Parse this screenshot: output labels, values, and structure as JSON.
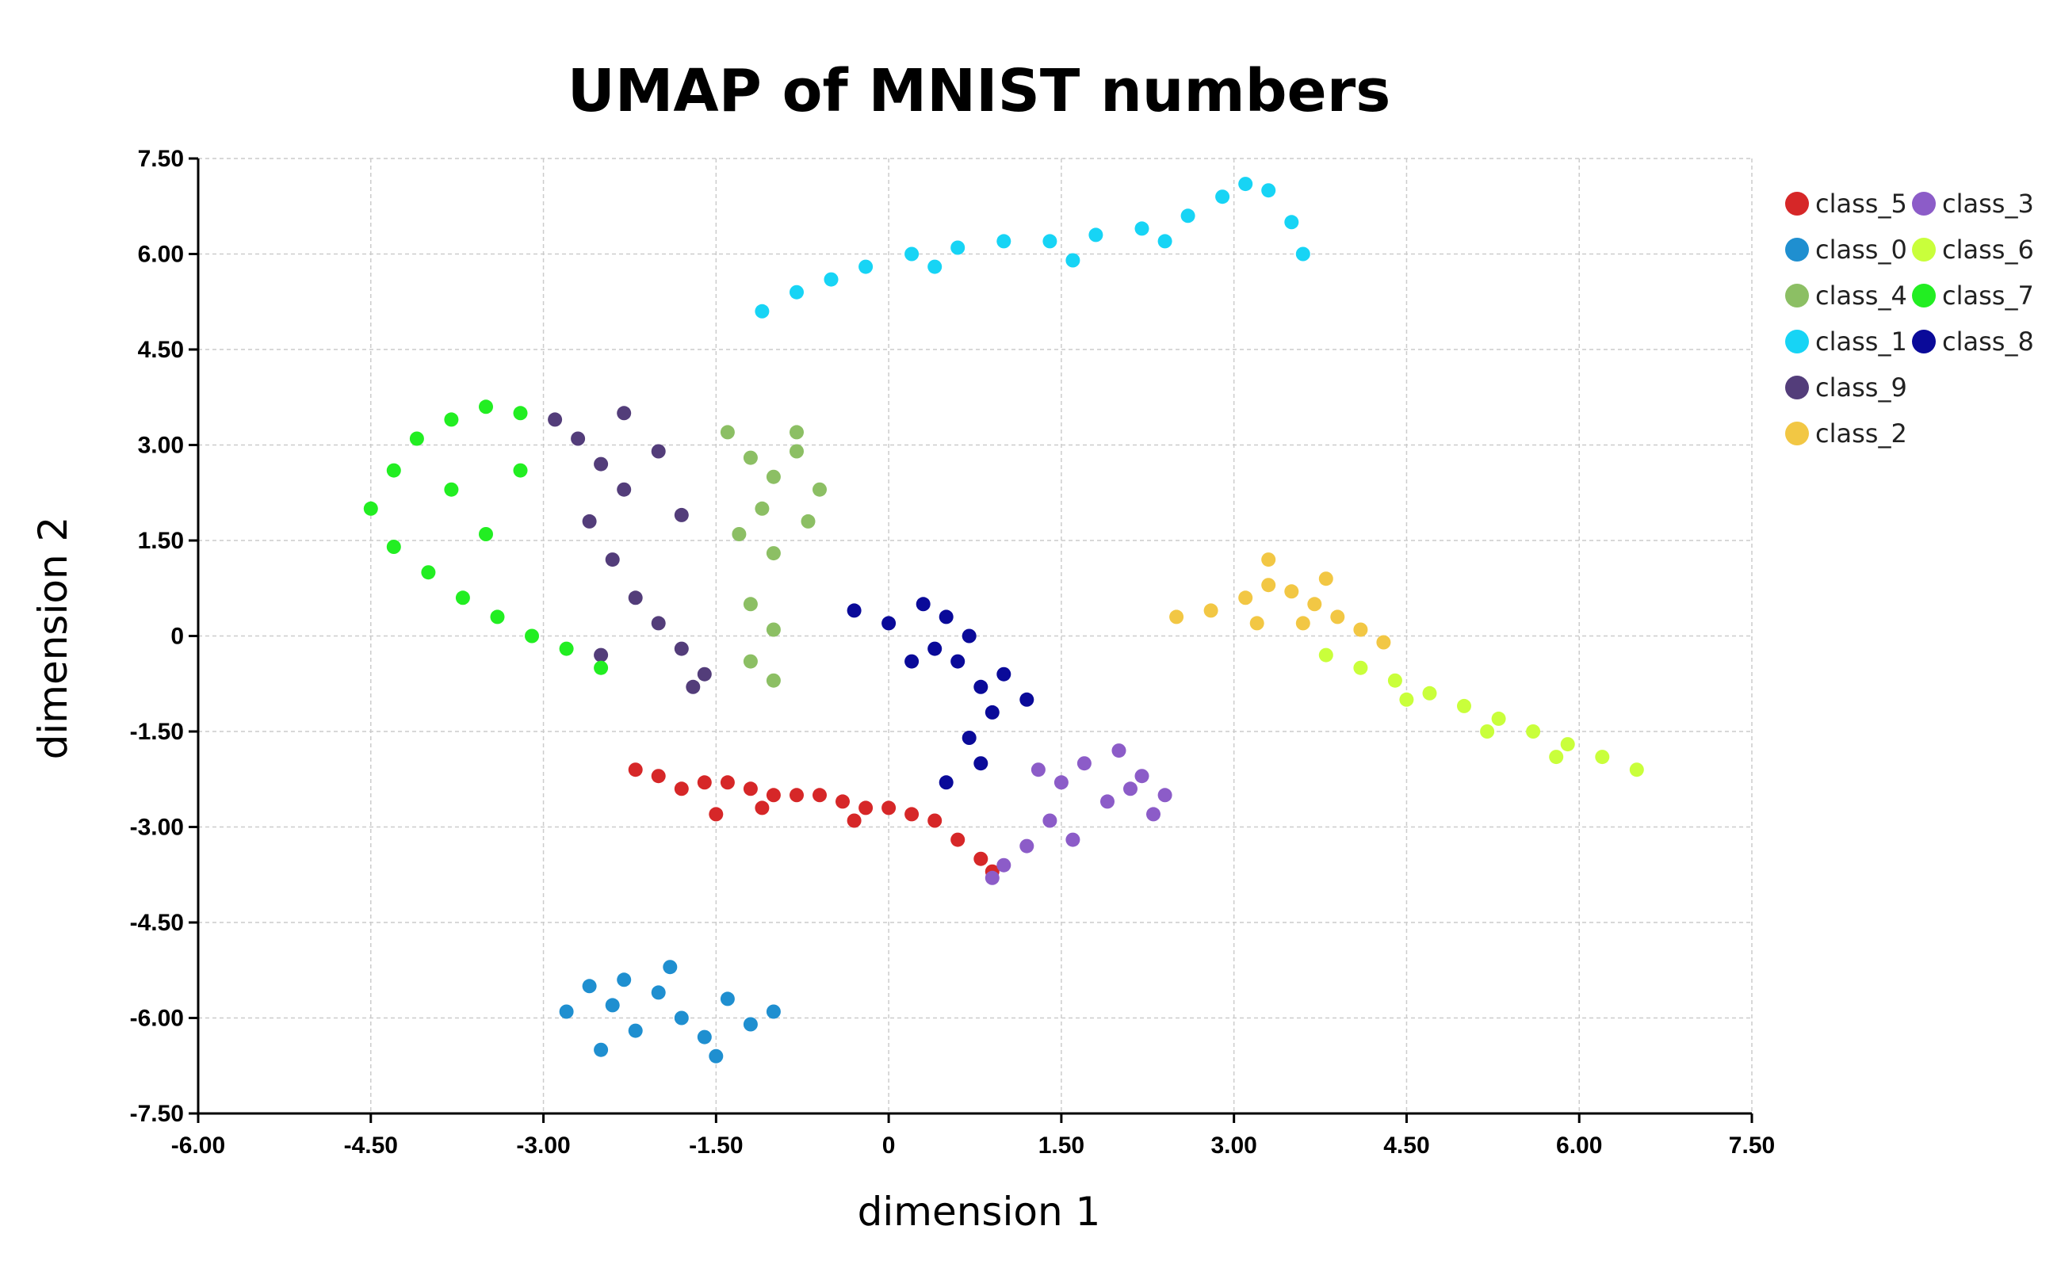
{
  "chart_data": {
    "type": "scatter",
    "title": "UMAP of MNIST numbers",
    "xlabel": "dimension 1",
    "ylabel": "dimension 2",
    "xlim": [
      -6.0,
      7.5
    ],
    "ylim": [
      -7.5,
      7.5
    ],
    "x_ticks": [
      "-6.00",
      "-4.50",
      "-3.00",
      "-1.50",
      "0",
      "1.50",
      "3.00",
      "4.50",
      "6.00",
      "7.50"
    ],
    "y_ticks": [
      "7.50",
      "6.00",
      "4.50",
      "3.00",
      "1.50",
      "0",
      "-1.50",
      "-3.00",
      "-4.50",
      "-6.00",
      "-7.50"
    ],
    "grid": true,
    "legend_position": "right",
    "series": [
      {
        "name": "class_5",
        "color": "#d62728",
        "points": [
          [
            -2.2,
            -2.1
          ],
          [
            -2.0,
            -2.2
          ],
          [
            -1.8,
            -2.4
          ],
          [
            -1.6,
            -2.3
          ],
          [
            -1.4,
            -2.3
          ],
          [
            -1.2,
            -2.4
          ],
          [
            -1.0,
            -2.5
          ],
          [
            -0.8,
            -2.5
          ],
          [
            -0.6,
            -2.5
          ],
          [
            -0.4,
            -2.6
          ],
          [
            -0.2,
            -2.7
          ],
          [
            0.0,
            -2.7
          ],
          [
            0.2,
            -2.8
          ],
          [
            0.4,
            -2.9
          ],
          [
            0.6,
            -3.2
          ],
          [
            0.8,
            -3.5
          ],
          [
            0.9,
            -3.7
          ],
          [
            -1.5,
            -2.8
          ],
          [
            -1.1,
            -2.7
          ],
          [
            -0.3,
            -2.9
          ]
        ]
      },
      {
        "name": "class_0",
        "color": "#1f8fd0",
        "points": [
          [
            -2.8,
            -5.9
          ],
          [
            -2.6,
            -5.5
          ],
          [
            -2.4,
            -5.8
          ],
          [
            -2.2,
            -6.2
          ],
          [
            -2.0,
            -5.6
          ],
          [
            -1.8,
            -6.0
          ],
          [
            -1.6,
            -6.3
          ],
          [
            -1.4,
            -5.7
          ],
          [
            -1.2,
            -6.1
          ],
          [
            -1.0,
            -5.9
          ],
          [
            -2.5,
            -6.5
          ],
          [
            -1.9,
            -5.2
          ],
          [
            -1.5,
            -6.6
          ],
          [
            -2.3,
            -5.4
          ]
        ]
      },
      {
        "name": "class_4",
        "color": "#8cbf64",
        "points": [
          [
            -1.4,
            3.2
          ],
          [
            -1.2,
            2.8
          ],
          [
            -1.0,
            2.5
          ],
          [
            -0.8,
            2.9
          ],
          [
            -0.6,
            2.3
          ],
          [
            -1.1,
            2.0
          ],
          [
            -1.3,
            1.6
          ],
          [
            -1.0,
            1.3
          ],
          [
            -1.2,
            0.5
          ],
          [
            -1.0,
            0.1
          ],
          [
            -1.2,
            -0.4
          ],
          [
            -1.0,
            -0.7
          ],
          [
            -0.8,
            3.2
          ],
          [
            -0.7,
            1.8
          ]
        ]
      },
      {
        "name": "class_1",
        "color": "#17d4f5",
        "points": [
          [
            -1.1,
            5.1
          ],
          [
            -0.8,
            5.4
          ],
          [
            -0.5,
            5.6
          ],
          [
            -0.2,
            5.8
          ],
          [
            0.2,
            6.0
          ],
          [
            0.6,
            6.1
          ],
          [
            1.0,
            6.2
          ],
          [
            1.4,
            6.2
          ],
          [
            1.8,
            6.3
          ],
          [
            2.2,
            6.4
          ],
          [
            2.6,
            6.6
          ],
          [
            2.9,
            6.9
          ],
          [
            3.1,
            7.1
          ],
          [
            3.3,
            7.0
          ],
          [
            3.5,
            6.5
          ],
          [
            3.6,
            6.0
          ],
          [
            0.4,
            5.8
          ],
          [
            1.6,
            5.9
          ],
          [
            2.4,
            6.2
          ]
        ]
      },
      {
        "name": "class_9",
        "color": "#533d7a",
        "points": [
          [
            -2.9,
            3.4
          ],
          [
            -2.7,
            3.1
          ],
          [
            -2.5,
            2.7
          ],
          [
            -2.3,
            2.3
          ],
          [
            -2.6,
            1.8
          ],
          [
            -2.4,
            1.2
          ],
          [
            -2.2,
            0.6
          ],
          [
            -2.0,
            0.2
          ],
          [
            -1.8,
            -0.2
          ],
          [
            -1.6,
            -0.6
          ],
          [
            -2.3,
            3.5
          ],
          [
            -2.0,
            2.9
          ],
          [
            -1.8,
            1.9
          ],
          [
            -2.5,
            -0.3
          ],
          [
            -1.7,
            -0.8
          ]
        ]
      },
      {
        "name": "class_2",
        "color": "#f2c744",
        "points": [
          [
            2.5,
            0.3
          ],
          [
            2.8,
            0.4
          ],
          [
            3.1,
            0.6
          ],
          [
            3.3,
            0.8
          ],
          [
            3.5,
            0.7
          ],
          [
            3.7,
            0.5
          ],
          [
            3.9,
            0.3
          ],
          [
            4.1,
            0.1
          ],
          [
            3.2,
            0.2
          ],
          [
            3.6,
            0.2
          ],
          [
            3.3,
            1.2
          ],
          [
            3.8,
            0.9
          ],
          [
            4.3,
            -0.1
          ]
        ]
      },
      {
        "name": "class_3",
        "color": "#8c5cc8",
        "points": [
          [
            1.3,
            -2.1
          ],
          [
            1.5,
            -2.3
          ],
          [
            1.7,
            -2.0
          ],
          [
            1.9,
            -2.6
          ],
          [
            2.1,
            -2.4
          ],
          [
            2.3,
            -2.8
          ],
          [
            1.4,
            -2.9
          ],
          [
            1.2,
            -3.3
          ],
          [
            1.0,
            -3.6
          ],
          [
            1.6,
            -3.2
          ],
          [
            2.0,
            -1.8
          ],
          [
            2.2,
            -2.2
          ],
          [
            2.4,
            -2.5
          ],
          [
            0.9,
            -3.8
          ]
        ]
      },
      {
        "name": "class_6",
        "color": "#c9ff3b",
        "points": [
          [
            3.8,
            -0.3
          ],
          [
            4.1,
            -0.5
          ],
          [
            4.4,
            -0.7
          ],
          [
            4.7,
            -0.9
          ],
          [
            5.0,
            -1.1
          ],
          [
            5.3,
            -1.3
          ],
          [
            5.6,
            -1.5
          ],
          [
            5.9,
            -1.7
          ],
          [
            6.2,
            -1.9
          ],
          [
            6.5,
            -2.1
          ],
          [
            4.5,
            -1.0
          ],
          [
            5.2,
            -1.5
          ],
          [
            5.8,
            -1.9
          ]
        ]
      },
      {
        "name": "class_7",
        "color": "#22ee22",
        "points": [
          [
            -4.5,
            2.0
          ],
          [
            -4.3,
            2.6
          ],
          [
            -4.1,
            3.1
          ],
          [
            -3.8,
            3.4
          ],
          [
            -3.5,
            3.6
          ],
          [
            -3.2,
            3.5
          ],
          [
            -4.3,
            1.4
          ],
          [
            -4.0,
            1.0
          ],
          [
            -3.7,
            0.6
          ],
          [
            -3.4,
            0.3
          ],
          [
            -3.1,
            0.0
          ],
          [
            -2.8,
            -0.2
          ],
          [
            -2.5,
            -0.5
          ],
          [
            -3.8,
            2.3
          ],
          [
            -3.5,
            1.6
          ],
          [
            -3.2,
            2.6
          ]
        ]
      },
      {
        "name": "class_8",
        "color": "#0a0a99",
        "points": [
          [
            -0.3,
            0.4
          ],
          [
            0.0,
            0.2
          ],
          [
            0.3,
            0.5
          ],
          [
            0.5,
            0.3
          ],
          [
            0.7,
            0.0
          ],
          [
            0.6,
            -0.4
          ],
          [
            0.8,
            -0.8
          ],
          [
            0.9,
            -1.2
          ],
          [
            0.7,
            -1.6
          ],
          [
            0.8,
            -2.0
          ],
          [
            1.0,
            -0.6
          ],
          [
            1.2,
            -1.0
          ],
          [
            0.5,
            -2.3
          ],
          [
            0.4,
            -0.2
          ],
          [
            0.2,
            -0.4
          ]
        ]
      }
    ]
  }
}
